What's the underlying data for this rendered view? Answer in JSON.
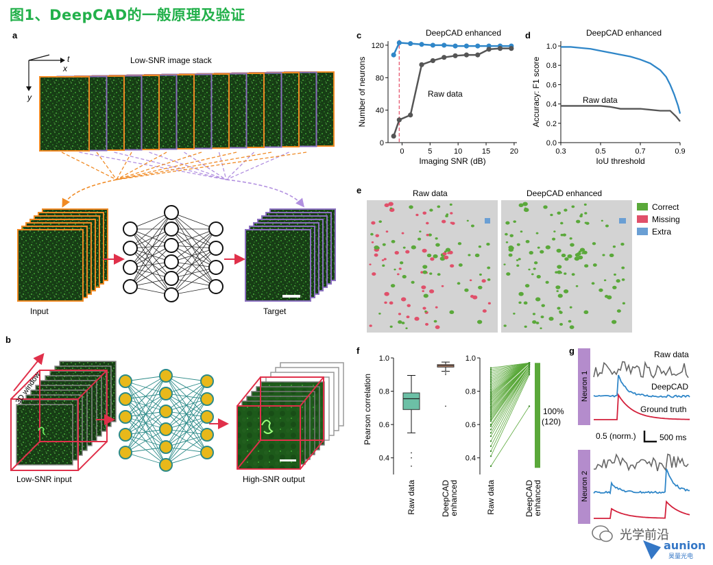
{
  "page_title": "图1、DeepCAD的一般原理及验证",
  "panel_letters": {
    "a": "a",
    "b": "b",
    "c": "c",
    "d": "d",
    "e": "e",
    "f": "f",
    "g": "g"
  },
  "panel_a": {
    "stack_title": "Low-SNR image stack",
    "axis_t": "t",
    "axis_x": "x",
    "axis_y": "y",
    "input_label": "Input",
    "target_label": "Target"
  },
  "panel_b": {
    "window_label": "3D window",
    "input_label": "Low-SNR input",
    "output_label": "High-SNR output"
  },
  "panel_e": {
    "raw_title": "Raw data",
    "enh_title": "DeepCAD enhanced",
    "legend": [
      {
        "label": "Correct",
        "color": "#5aa83a"
      },
      {
        "label": "Missing",
        "color": "#e0506a"
      },
      {
        "label": "Extra",
        "color": "#6a9fd4"
      }
    ]
  },
  "panel_g": {
    "neuron1": "Neuron 1",
    "neuron2": "Neuron 2",
    "raw_label": "Raw data",
    "deep_label": "DeepCAD",
    "gt_label": "Ground truth",
    "scale_y": "0.5 (norm.)",
    "scale_x": "500 ms"
  },
  "colors": {
    "accent_green": "#22b04a",
    "orange": "#f08a24",
    "purple": "#8a6fbf",
    "blue_series": "#2f86c8",
    "gray_series": "#555555",
    "red_line": "#d31f3a",
    "teal": "#2b8a88",
    "gold": "#e8b81a"
  },
  "watermark": {
    "text": "光学前沿",
    "brand": "aunion",
    "brand_sub": "昊量光电"
  },
  "chart_data": [
    {
      "id": "c",
      "type": "line",
      "title": "DeepCAD enhanced",
      "xlabel": "Imaging SNR (dB)",
      "ylabel": "Number of neurons",
      "xlim": [
        -2.5,
        20.5
      ],
      "ylim": [
        0,
        125
      ],
      "xticks": [
        0,
        5,
        10,
        15,
        20
      ],
      "yticks": [
        0,
        40,
        80,
        120
      ],
      "annotation": "Raw data",
      "vline_x": -0.5,
      "series": [
        {
          "name": "DeepCAD enhanced",
          "color": "#2f86c8",
          "x": [
            -1.5,
            -0.5,
            1.5,
            3.5,
            5.5,
            7.5,
            9.5,
            11.5,
            13.5,
            15.5,
            17.5,
            19.5
          ],
          "y": [
            108,
            123,
            122,
            121,
            120,
            120,
            119,
            119,
            119,
            119,
            119,
            119
          ]
        },
        {
          "name": "Raw data",
          "color": "#555555",
          "x": [
            -1.5,
            -0.5,
            1.5,
            3.5,
            5.5,
            7.5,
            9.5,
            11.5,
            13.5,
            15.5,
            17.5,
            19.5
          ],
          "y": [
            8,
            28,
            34,
            96,
            101,
            105,
            107,
            108,
            108,
            115,
            116,
            116
          ]
        }
      ]
    },
    {
      "id": "d",
      "type": "line",
      "title": "DeepCAD enhanced",
      "xlabel": "IoU threshold",
      "ylabel": "Accuracy: F1 score",
      "xlim": [
        0.3,
        0.9
      ],
      "ylim": [
        0,
        1.05
      ],
      "xticks": [
        0.3,
        0.5,
        0.7,
        0.9
      ],
      "yticks": [
        0,
        0.2,
        0.4,
        0.6,
        0.8,
        1.0
      ],
      "annotation": "Raw data",
      "series": [
        {
          "name": "DeepCAD enhanced",
          "color": "#2f86c8",
          "x": [
            0.3,
            0.35,
            0.4,
            0.45,
            0.5,
            0.55,
            0.6,
            0.65,
            0.7,
            0.75,
            0.8,
            0.83,
            0.85,
            0.87,
            0.89,
            0.9
          ],
          "y": [
            0.99,
            0.99,
            0.98,
            0.97,
            0.95,
            0.93,
            0.91,
            0.89,
            0.86,
            0.82,
            0.75,
            0.68,
            0.6,
            0.5,
            0.38,
            0.3
          ]
        },
        {
          "name": "Raw data",
          "color": "#555555",
          "x": [
            0.3,
            0.4,
            0.5,
            0.55,
            0.6,
            0.65,
            0.7,
            0.75,
            0.8,
            0.85,
            0.88,
            0.9
          ],
          "y": [
            0.38,
            0.38,
            0.38,
            0.37,
            0.35,
            0.35,
            0.35,
            0.34,
            0.33,
            0.33,
            0.27,
            0.22
          ]
        }
      ]
    },
    {
      "id": "f-box",
      "type": "box",
      "ylabel": "Pearson correlation",
      "ylim": [
        0.3,
        1.0
      ],
      "yticks": [
        0.4,
        0.6,
        0.8,
        1.0
      ],
      "categories": [
        "Raw data",
        "DeepCAD enhanced"
      ],
      "boxes": [
        {
          "color": "#6cc0a6",
          "whisker_low": 0.55,
          "q1": 0.69,
          "median": 0.755,
          "q3": 0.79,
          "whisker_high": 0.895,
          "outliers": [
            0.43,
            0.4,
            0.35
          ]
        },
        {
          "color": "#e0a080",
          "whisker_low": 0.92,
          "q1": 0.945,
          "median": 0.953,
          "q3": 0.96,
          "whisker_high": 0.975,
          "outliers": [
            0.91,
            0.9,
            0.71
          ]
        }
      ]
    },
    {
      "id": "f-pairs",
      "type": "line",
      "ylim": [
        0.3,
        1.0
      ],
      "yticks": [
        0.4,
        0.6,
        0.8,
        1.0
      ],
      "categories": [
        "Raw data",
        "DeepCAD enhanced"
      ],
      "bar_label": "100%\n(120)",
      "pairs_raw": [
        0.35,
        0.41,
        0.44,
        0.47,
        0.5,
        0.53,
        0.55,
        0.57,
        0.59,
        0.6,
        0.62,
        0.63,
        0.64,
        0.65,
        0.66,
        0.67,
        0.68,
        0.69,
        0.7,
        0.7,
        0.71,
        0.72,
        0.73,
        0.73,
        0.74,
        0.75,
        0.75,
        0.76,
        0.76,
        0.77,
        0.77,
        0.78,
        0.78,
        0.79,
        0.79,
        0.8,
        0.81,
        0.82,
        0.83,
        0.84,
        0.85,
        0.86,
        0.87,
        0.88,
        0.89,
        0.9,
        0.91,
        0.92,
        0.93,
        0.94
      ],
      "pairs_enh": [
        0.71,
        0.9,
        0.91,
        0.92,
        0.93,
        0.93,
        0.94,
        0.94,
        0.94,
        0.95,
        0.95,
        0.95,
        0.95,
        0.95,
        0.95,
        0.95,
        0.96,
        0.96,
        0.96,
        0.96,
        0.96,
        0.96,
        0.96,
        0.96,
        0.96,
        0.96,
        0.96,
        0.97,
        0.97,
        0.97,
        0.97,
        0.97,
        0.97,
        0.97,
        0.97,
        0.97,
        0.97,
        0.97,
        0.97,
        0.97,
        0.97,
        0.97,
        0.97,
        0.97,
        0.97,
        0.97,
        0.97,
        0.97,
        0.97,
        0.97
      ]
    }
  ]
}
